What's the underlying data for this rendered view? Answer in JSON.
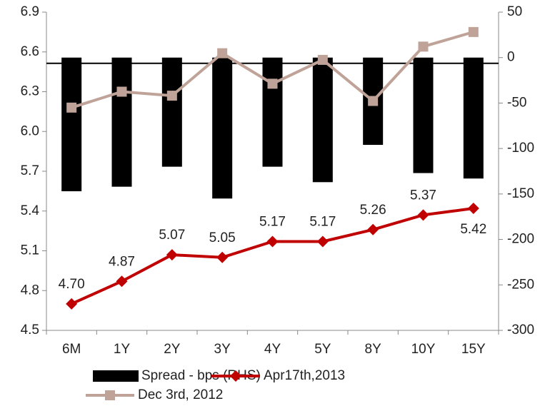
{
  "chart_data": {
    "type": "combo",
    "categories": [
      "6M",
      "1Y",
      "2Y",
      "3Y",
      "4Y",
      "5Y",
      "8Y",
      "10Y",
      "15Y"
    ],
    "series": [
      {
        "name": "Spread - bps (RHS)",
        "type": "bar",
        "axis": "y2",
        "color": "#000000",
        "values": [
          -147,
          -142,
          -120,
          -155,
          -120,
          -137,
          -96,
          -127,
          -133
        ]
      },
      {
        "name": "Apr17th,2013",
        "type": "line",
        "axis": "y",
        "color": "#c00000",
        "marker": "diamond",
        "values": [
          4.7,
          4.87,
          5.07,
          5.05,
          5.17,
          5.17,
          5.26,
          5.37,
          5.42
        ],
        "value_labels": [
          "4.70",
          "4.87",
          "5.07",
          "5.05",
          "5.17",
          "5.17",
          "5.26",
          "5.37",
          "5.42"
        ]
      },
      {
        "name": "Dec 3rd, 2012",
        "type": "line",
        "axis": "y",
        "color": "#c0a398",
        "marker": "square",
        "values": [
          6.18,
          6.3,
          6.27,
          6.59,
          6.36,
          6.54,
          6.23,
          6.64,
          6.75
        ]
      }
    ],
    "ylim": [
      4.5,
      6.9
    ],
    "yticks": [
      4.5,
      4.8,
      5.1,
      5.4,
      5.7,
      {
        "value": 6,
        "label": "6.0"
      },
      6.3,
      6.6,
      6.9
    ],
    "y2lim": [
      -300,
      50
    ],
    "y2ticks": [
      -300,
      -250,
      -200,
      -150,
      -100,
      -50,
      0,
      50
    ],
    "grid": false
  }
}
